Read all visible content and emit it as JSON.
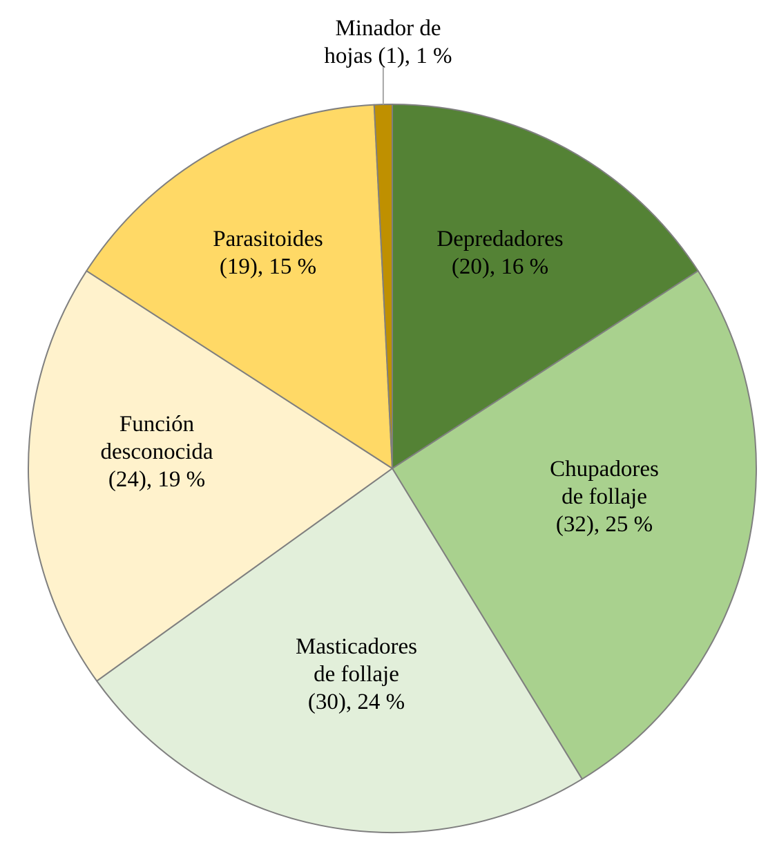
{
  "chart_data": {
    "type": "pie",
    "title": "",
    "slices": [
      {
        "label": "Depredadores",
        "count": 20,
        "percent": 16,
        "color": "#548235",
        "label_lines": [
          "Depredadores",
          "(20), 16 %"
        ]
      },
      {
        "label": "Chupadores de follaje",
        "count": 32,
        "percent": 25,
        "color": "#a9d18e",
        "label_lines": [
          "Chupadores",
          "de follaje",
          "(32), 25 %"
        ]
      },
      {
        "label": "Masticadores de follaje",
        "count": 30,
        "percent": 24,
        "color": "#e2efda",
        "label_lines": [
          "Masticadores",
          "de follaje",
          "(30), 24 %"
        ]
      },
      {
        "label": "Función desconocida",
        "count": 24,
        "percent": 19,
        "color": "#fff2cc",
        "label_lines": [
          "Función",
          "desconocida",
          "(24), 19 %"
        ]
      },
      {
        "label": "Parasitoides",
        "count": 19,
        "percent": 15,
        "color": "#ffd966",
        "label_lines": [
          "Parasitoides",
          "(19), 15 %"
        ]
      },
      {
        "label": "Minador de hojas",
        "count": 1,
        "percent": 1,
        "color": "#bf9000",
        "label_lines": [
          "Minador de",
          "hojas (1), 1 %"
        ]
      }
    ],
    "start_angle": "12 o'clock",
    "direction": "clockwise",
    "legend": "none"
  }
}
